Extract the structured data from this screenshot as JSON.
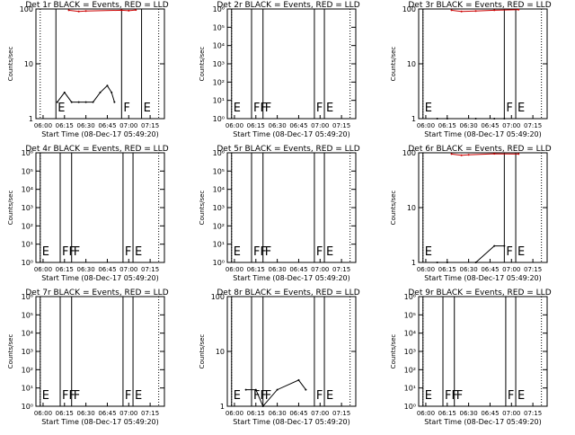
{
  "page": {
    "start_time_label": "Start Time (08-Dec-17 05:49:20)",
    "ylabel": "Counts/sec",
    "tick_labels": [
      "06:00",
      "06:15",
      "06:30",
      "06:45",
      "07:00",
      "07:15"
    ],
    "colors": {
      "events": "#000000",
      "lld": "#cc0000",
      "axes": "#000000"
    }
  },
  "chart_data": [
    {
      "type": "line",
      "title": "Det 1r BLACK = Events, RED = LLD",
      "ylabel": "Counts/sec",
      "xlabel": "Start Time (08-Dec-17 05:49:20)",
      "yscale": "log",
      "ylim": [
        1,
        100
      ],
      "yticks": [
        "1",
        "10",
        "100"
      ],
      "xticks": [
        "06:00",
        "06:15",
        "06:30",
        "06:45",
        "07:00",
        "07:15"
      ],
      "flags": [
        {
          "label": "E",
          "t": "06:09"
        },
        {
          "label": "F",
          "t": "06:55"
        },
        {
          "label": "E",
          "t": "07:09"
        }
      ],
      "series": [
        {
          "name": "BLACK = Events",
          "values": [
            [
              "06:10",
              2
            ],
            [
              "06:15",
              3
            ],
            [
              "06:20",
              2
            ],
            [
              "06:25",
              2
            ],
            [
              "06:30",
              2
            ],
            [
              "06:35",
              2
            ],
            [
              "06:40",
              3
            ],
            [
              "06:45",
              4
            ],
            [
              "06:48",
              3
            ],
            [
              "06:50",
              2
            ]
          ]
        },
        {
          "name": "RED = LLD",
          "values": [
            [
              "06:18",
              95
            ],
            [
              "06:25",
              90
            ],
            [
              "06:30",
              92
            ],
            [
              "06:55",
              95
            ],
            [
              "07:00",
              93
            ],
            [
              "07:05",
              96
            ]
          ]
        }
      ]
    },
    {
      "type": "line",
      "title": "Det 2r BLACK = Events, RED = LLD",
      "ylabel": "Counts/sec",
      "xlabel": "Start Time (08-Dec-17 05:49:20)",
      "yscale": "log",
      "ylim": [
        1,
        1000000
      ],
      "yticks": [
        "10⁰",
        "10¹",
        "10²",
        "10³",
        "10⁴",
        "10⁵",
        "10⁶"
      ],
      "xticks": [
        "06:00",
        "06:15",
        "06:30",
        "06:45",
        "07:00",
        "07:15"
      ],
      "flags": [
        {
          "label": "E",
          "t": "05:58"
        },
        {
          "label": "FF",
          "t": "06:12"
        },
        {
          "label": "F",
          "t": "06:20"
        },
        {
          "label": "F",
          "t": "06:56"
        },
        {
          "label": "E",
          "t": "07:03"
        }
      ],
      "series": []
    },
    {
      "type": "line",
      "title": "Det 3r BLACK = Events, RED = LLD",
      "ylabel": "Counts/sec",
      "xlabel": "Start Time (08-Dec-17 05:49:20)",
      "yscale": "log",
      "ylim": [
        1,
        100
      ],
      "yticks": [
        "1",
        "10",
        "100"
      ],
      "xticks": [
        "06:00",
        "06:15",
        "06:30",
        "06:45",
        "07:00",
        "07:15"
      ],
      "flags": [
        {
          "label": "E",
          "t": "05:58"
        },
        {
          "label": "F",
          "t": "06:55"
        },
        {
          "label": "E",
          "t": "07:03"
        }
      ],
      "series": [
        {
          "name": "BLACK = Events",
          "values": [
            [
              "06:08",
              1
            ],
            [
              "06:15",
              1
            ],
            [
              "06:35",
              1
            ],
            [
              "06:48",
              1
            ],
            [
              "06:55",
              1
            ]
          ]
        },
        {
          "name": "RED = LLD",
          "values": [
            [
              "06:18",
              95
            ],
            [
              "06:25",
              90
            ],
            [
              "06:35",
              92
            ],
            [
              "06:48",
              95
            ],
            [
              "07:05",
              97
            ]
          ]
        }
      ]
    },
    {
      "type": "line",
      "title": "Det 4r BLACK = Events, RED = LLD",
      "ylabel": "Counts/sec",
      "xlabel": "Start Time (08-Dec-17 05:49:20)",
      "yscale": "log",
      "ylim": [
        1,
        1000000
      ],
      "yticks": [
        "10⁰",
        "10¹",
        "10²",
        "10³",
        "10⁴",
        "10⁵",
        "10⁶"
      ],
      "xticks": [
        "06:00",
        "06:15",
        "06:30",
        "06:45",
        "07:00",
        "07:15"
      ],
      "flags": [
        {
          "label": "E",
          "t": "05:58"
        },
        {
          "label": "FF",
          "t": "06:12"
        },
        {
          "label": "F",
          "t": "06:20"
        },
        {
          "label": "F",
          "t": "06:56"
        },
        {
          "label": "E",
          "t": "07:03"
        }
      ],
      "series": []
    },
    {
      "type": "line",
      "title": "Det 5r BLACK = Events, RED = LLD",
      "ylabel": "Counts/sec",
      "xlabel": "Start Time (08-Dec-17 05:49:20)",
      "yscale": "log",
      "ylim": [
        1,
        1000000
      ],
      "yticks": [
        "10⁰",
        "10¹",
        "10²",
        "10³",
        "10⁴",
        "10⁵",
        "10⁶"
      ],
      "xticks": [
        "06:00",
        "06:15",
        "06:30",
        "06:45",
        "07:00",
        "07:15"
      ],
      "flags": [
        {
          "label": "E",
          "t": "05:58"
        },
        {
          "label": "FF",
          "t": "06:12"
        },
        {
          "label": "F",
          "t": "06:20"
        },
        {
          "label": "F",
          "t": "06:56"
        },
        {
          "label": "E",
          "t": "07:03"
        }
      ],
      "series": []
    },
    {
      "type": "line",
      "title": "Det 6r BLACK = Events, RED = LLD",
      "ylabel": "Counts/sec",
      "xlabel": "Start Time (08-Dec-17 05:49:20)",
      "yscale": "log",
      "ylim": [
        1,
        100
      ],
      "yticks": [
        "1",
        "10",
        "100"
      ],
      "xticks": [
        "06:00",
        "06:15",
        "06:30",
        "06:45",
        "07:00",
        "07:15"
      ],
      "flags": [
        {
          "label": "E",
          "t": "05:58"
        },
        {
          "label": "F",
          "t": "06:55"
        },
        {
          "label": "E",
          "t": "07:03"
        }
      ],
      "series": [
        {
          "name": "BLACK = Events",
          "values": [
            [
              "06:08",
              1
            ],
            [
              "06:15",
              1
            ],
            [
              "06:35",
              1
            ],
            [
              "06:48",
              2
            ],
            [
              "06:55",
              2
            ]
          ]
        },
        {
          "name": "RED = LLD",
          "values": [
            [
              "06:18",
              95
            ],
            [
              "06:25",
              90
            ],
            [
              "06:30",
              92
            ],
            [
              "06:48",
              96
            ],
            [
              "07:05",
              95
            ]
          ]
        }
      ]
    },
    {
      "type": "line",
      "title": "Det 7r BLACK = Events, RED = LLD",
      "ylabel": "Counts/sec",
      "xlabel": "Start Time (08-Dec-17 05:49:20)",
      "yscale": "log",
      "ylim": [
        1,
        1000000
      ],
      "yticks": [
        "10⁰",
        "10¹",
        "10²",
        "10³",
        "10⁴",
        "10⁵",
        "10⁶"
      ],
      "xticks": [
        "06:00",
        "06:15",
        "06:30",
        "06:45",
        "07:00",
        "07:15"
      ],
      "flags": [
        {
          "label": "E",
          "t": "05:58"
        },
        {
          "label": "FF",
          "t": "06:12"
        },
        {
          "label": "F",
          "t": "06:20"
        },
        {
          "label": "F",
          "t": "06:56"
        },
        {
          "label": "E",
          "t": "07:03"
        }
      ],
      "series": []
    },
    {
      "type": "line",
      "title": "Det 8r BLACK = Events, RED = LLD",
      "ylabel": "Counts/sec",
      "xlabel": "Start Time (08-Dec-17 05:49:20)",
      "yscale": "log",
      "ylim": [
        1,
        100
      ],
      "yticks": [
        "1",
        "10",
        "100"
      ],
      "xticks": [
        "06:00",
        "06:15",
        "06:30",
        "06:45",
        "07:00",
        "07:15"
      ],
      "flags": [
        {
          "label": "E",
          "t": "05:58"
        },
        {
          "label": "FF",
          "t": "06:12"
        },
        {
          "label": "F",
          "t": "06:20"
        },
        {
          "label": "F",
          "t": "06:56"
        },
        {
          "label": "E",
          "t": "07:03"
        }
      ],
      "series": [
        {
          "name": "BLACK = Events",
          "values": [
            [
              "06:08",
              2
            ],
            [
              "06:15",
              2
            ],
            [
              "06:20",
              1
            ],
            [
              "06:30",
              2
            ],
            [
              "06:45",
              3
            ],
            [
              "06:50",
              2
            ]
          ]
        }
      ]
    },
    {
      "type": "line",
      "title": "Det 9r BLACK = Events, RED = LLD",
      "ylabel": "Counts/sec",
      "xlabel": "Start Time (08-Dec-17 05:49:20)",
      "yscale": "log",
      "ylim": [
        1,
        1000000
      ],
      "yticks": [
        "10⁰",
        "10¹",
        "10²",
        "10³",
        "10⁴",
        "10⁵",
        "10⁶"
      ],
      "xticks": [
        "06:00",
        "06:15",
        "06:30",
        "06:45",
        "07:00",
        "07:15"
      ],
      "flags": [
        {
          "label": "E",
          "t": "05:58"
        },
        {
          "label": "FF",
          "t": "06:12"
        },
        {
          "label": "F",
          "t": "06:20"
        },
        {
          "label": "F",
          "t": "06:56"
        },
        {
          "label": "E",
          "t": "07:03"
        }
      ],
      "series": []
    }
  ]
}
